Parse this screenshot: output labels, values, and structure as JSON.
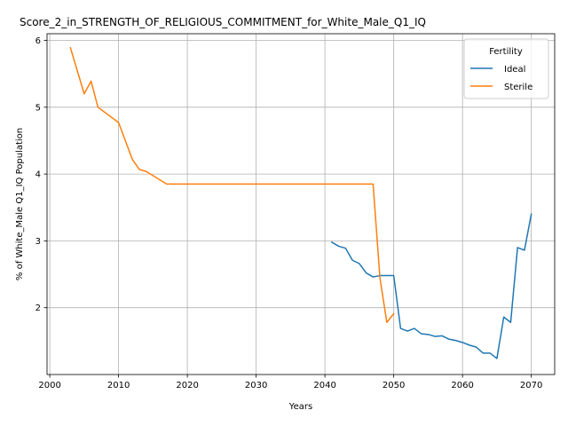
{
  "chart_data": {
    "type": "line",
    "title": "Score_2_in_STRENGTH_OF_RELIGIOUS_COMMITMENT_for_White_Male_Q1_IQ",
    "xlabel": "Years",
    "ylabel": "% of White_Male Q1_IQ Population",
    "xlim": [
      1999.6,
      2073.4
    ],
    "ylim": [
      1.0,
      6.1
    ],
    "x_ticks": [
      2000,
      2010,
      2020,
      2030,
      2040,
      2050,
      2060,
      2070
    ],
    "y_ticks": [
      2,
      3,
      4,
      5,
      6
    ],
    "grid": true,
    "legend": {
      "title": "Fertility",
      "placement": "top-right"
    },
    "series": [
      {
        "name": "Ideal",
        "color": "#1f77b4",
        "x": [
          2041,
          2042,
          2043,
          2044,
          2045,
          2046,
          2047,
          2048,
          2049,
          2050,
          2051,
          2052,
          2053,
          2054,
          2055,
          2056,
          2057,
          2058,
          2059,
          2060,
          2061,
          2062,
          2063,
          2064,
          2065,
          2066,
          2067,
          2068,
          2069,
          2070
        ],
        "y": [
          2.98,
          2.92,
          2.89,
          2.71,
          2.66,
          2.52,
          2.46,
          2.48,
          2.48,
          2.48,
          1.69,
          1.65,
          1.69,
          1.61,
          1.6,
          1.57,
          1.58,
          1.53,
          1.51,
          1.48,
          1.44,
          1.41,
          1.32,
          1.32,
          1.24,
          1.86,
          1.78,
          2.9,
          2.86,
          3.4
        ]
      },
      {
        "name": "Sterile",
        "color": "#ff7f0e",
        "x": [
          2003,
          2005,
          2006,
          2007,
          2010,
          2012,
          2013,
          2014,
          2017,
          2020,
          2025,
          2030,
          2035,
          2040,
          2045,
          2047,
          2048,
          2049,
          2050
        ],
        "y": [
          5.89,
          5.2,
          5.39,
          5.0,
          4.77,
          4.22,
          4.07,
          4.04,
          3.85,
          3.85,
          3.85,
          3.85,
          3.85,
          3.85,
          3.85,
          3.85,
          2.44,
          1.78,
          1.91
        ]
      }
    ]
  }
}
